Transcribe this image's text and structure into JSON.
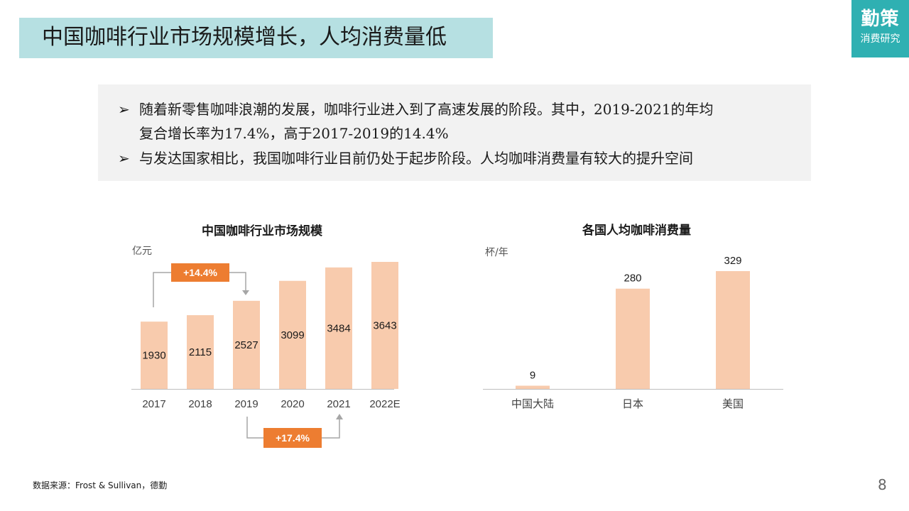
{
  "title": "中国咖啡行业市场规模增长，人均消费量低",
  "logo": {
    "main": "勤策",
    "sub": "消费研究"
  },
  "summary": {
    "bullet_symbol": "➢",
    "bullets": [
      {
        "line1": "随着新零售咖啡浪潮的发展，咖啡行业进入到了高速发展的阶段。其中，2019-2021的年均",
        "line2": "复合增长率为17.4%，高于2017-2019的14.4%"
      },
      {
        "line1": "与发达国家相比，我国咖啡行业目前仍处于起步阶段。人均咖啡消费量有较大的提升空间"
      }
    ]
  },
  "chart_data": [
    {
      "type": "bar",
      "title": "中国咖啡行业市场规模",
      "ylabel": "亿元",
      "categories": [
        "2017",
        "2018",
        "2019",
        "2020",
        "2021",
        "2022E"
      ],
      "values": [
        1930,
        2115,
        2527,
        3099,
        3484,
        3643
      ],
      "ylim": [
        0,
        3643
      ],
      "grid": false,
      "annotations": [
        {
          "text": "+14.4%",
          "from": "2017",
          "to": "2019",
          "position": "above"
        },
        {
          "text": "+17.4%",
          "from": "2019",
          "to": "2021",
          "position": "below"
        }
      ],
      "bar_color": "#f8cbad",
      "annotation_color": "#ed7d31"
    },
    {
      "type": "bar",
      "title": "各国人均咖啡消费量",
      "ylabel": "杯/年",
      "categories": [
        "中国大陆",
        "日本",
        "美国"
      ],
      "values": [
        9,
        280,
        329
      ],
      "ylim": [
        0,
        329
      ],
      "grid": false,
      "bar_color": "#f8cbad"
    }
  ],
  "footer": {
    "source": "数据来源：Frost & Sullivan，德勤",
    "page": "8"
  }
}
